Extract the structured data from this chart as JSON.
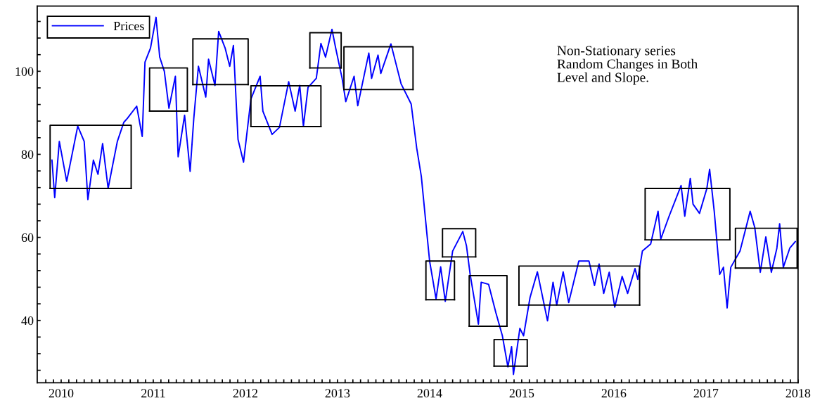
{
  "chart_data": {
    "type": "line",
    "annotations": [
      "Non-Stationary series\nRandom Changes in Both\nLevel and Slope."
    ],
    "xlim": [
      2009.74,
      2018.0
    ],
    "ylim": [
      25,
      115.7
    ],
    "xticks": [
      {
        "value": 2009.833,
        "label": null
      },
      {
        "value": 2009.917,
        "label": null
      },
      2010,
      {
        "value": 2010.083,
        "label": null
      },
      {
        "value": 2010.167,
        "label": null
      },
      {
        "value": 2010.25,
        "label": null
      },
      {
        "value": 2010.333,
        "label": null
      },
      {
        "value": 2010.417,
        "label": null
      },
      {
        "value": 2010.5,
        "label": null
      },
      {
        "value": 2010.583,
        "label": null
      },
      {
        "value": 2010.667,
        "label": null
      },
      {
        "value": 2010.75,
        "label": null
      },
      {
        "value": 2010.833,
        "label": null
      },
      {
        "value": 2010.917,
        "label": null
      },
      2011,
      {
        "value": 2011.083,
        "label": null
      },
      {
        "value": 2011.167,
        "label": null
      },
      {
        "value": 2011.25,
        "label": null
      },
      {
        "value": 2011.333,
        "label": null
      },
      {
        "value": 2011.417,
        "label": null
      },
      {
        "value": 2011.5,
        "label": null
      },
      {
        "value": 2011.583,
        "label": null
      },
      {
        "value": 2011.667,
        "label": null
      },
      {
        "value": 2011.75,
        "label": null
      },
      {
        "value": 2011.833,
        "label": null
      },
      {
        "value": 2011.917,
        "label": null
      },
      2012,
      {
        "value": 2012.083,
        "label": null
      },
      {
        "value": 2012.167,
        "label": null
      },
      {
        "value": 2012.25,
        "label": null
      },
      {
        "value": 2012.333,
        "label": null
      },
      {
        "value": 2012.417,
        "label": null
      },
      {
        "value": 2012.5,
        "label": null
      },
      {
        "value": 2012.583,
        "label": null
      },
      {
        "value": 2012.667,
        "label": null
      },
      {
        "value": 2012.75,
        "label": null
      },
      {
        "value": 2012.833,
        "label": null
      },
      {
        "value": 2012.917,
        "label": null
      },
      2013,
      {
        "value": 2013.083,
        "label": null
      },
      {
        "value": 2013.167,
        "label": null
      },
      {
        "value": 2013.25,
        "label": null
      },
      {
        "value": 2013.333,
        "label": null
      },
      {
        "value": 2013.417,
        "label": null
      },
      {
        "value": 2013.5,
        "label": null
      },
      {
        "value": 2013.583,
        "label": null
      },
      {
        "value": 2013.667,
        "label": null
      },
      {
        "value": 2013.75,
        "label": null
      },
      {
        "value": 2013.833,
        "label": null
      },
      {
        "value": 2013.917,
        "label": null
      },
      2014,
      {
        "value": 2014.083,
        "label": null
      },
      {
        "value": 2014.167,
        "label": null
      },
      {
        "value": 2014.25,
        "label": null
      },
      {
        "value": 2014.333,
        "label": null
      },
      {
        "value": 2014.417,
        "label": null
      },
      {
        "value": 2014.5,
        "label": null
      },
      {
        "value": 2014.583,
        "label": null
      },
      {
        "value": 2014.667,
        "label": null
      },
      {
        "value": 2014.75,
        "label": null
      },
      {
        "value": 2014.833,
        "label": null
      },
      {
        "value": 2014.917,
        "label": null
      },
      2015,
      {
        "value": 2015.083,
        "label": null
      },
      {
        "value": 2015.167,
        "label": null
      },
      {
        "value": 2015.25,
        "label": null
      },
      {
        "value": 2015.333,
        "label": null
      },
      {
        "value": 2015.417,
        "label": null
      },
      {
        "value": 2015.5,
        "label": null
      },
      {
        "value": 2015.583,
        "label": null
      },
      {
        "value": 2015.667,
        "label": null
      },
      {
        "value": 2015.75,
        "label": null
      },
      {
        "value": 2015.833,
        "label": null
      },
      {
        "value": 2015.917,
        "label": null
      },
      2016,
      {
        "value": 2016.083,
        "label": null
      },
      {
        "value": 2016.167,
        "label": null
      },
      {
        "value": 2016.25,
        "label": null
      },
      {
        "value": 2016.333,
        "label": null
      },
      {
        "value": 2016.417,
        "label": null
      },
      {
        "value": 2016.5,
        "label": null
      },
      {
        "value": 2016.583,
        "label": null
      },
      {
        "value": 2016.667,
        "label": null
      },
      {
        "value": 2016.75,
        "label": null
      },
      {
        "value": 2016.833,
        "label": null
      },
      {
        "value": 2016.917,
        "label": null
      },
      2017,
      {
        "value": 2017.083,
        "label": null
      },
      {
        "value": 2017.167,
        "label": null
      },
      {
        "value": 2017.25,
        "label": null
      },
      {
        "value": 2017.333,
        "label": null
      },
      {
        "value": 2017.417,
        "label": null
      },
      {
        "value": 2017.5,
        "label": null
      },
      {
        "value": 2017.583,
        "label": null
      },
      {
        "value": 2017.667,
        "label": null
      },
      {
        "value": 2017.75,
        "label": null
      },
      {
        "value": 2017.833,
        "label": null
      },
      {
        "value": 2017.917,
        "label": null
      },
      2018
    ],
    "yticks": [
      {
        "value": 28,
        "label": null
      },
      {
        "value": 32,
        "label": null
      },
      {
        "value": 36,
        "label": null
      },
      40,
      {
        "value": 44,
        "label": null
      },
      {
        "value": 48,
        "label": null
      },
      {
        "value": 52,
        "label": null
      },
      {
        "value": 56,
        "label": null
      },
      60,
      {
        "value": 64,
        "label": null
      },
      {
        "value": 68,
        "label": null
      },
      {
        "value": 72,
        "label": null
      },
      {
        "value": 76,
        "label": null
      },
      80,
      {
        "value": 84,
        "label": null
      },
      {
        "value": 88,
        "label": null
      },
      {
        "value": 92,
        "label": null
      },
      {
        "value": 96,
        "label": null
      },
      100,
      {
        "value": 104,
        "label": null
      },
      {
        "value": 108,
        "label": null
      },
      {
        "value": 112,
        "label": null
      }
    ],
    "grid": false,
    "legend": "top left",
    "marker": "none",
    "line_style": "solid",
    "series": [
      {
        "name": "Prices",
        "color": "#0000ff",
        "x": [
          2009.9,
          2009.93,
          2009.98,
          2010.06,
          2010.18,
          2010.25,
          2010.29,
          2010.35,
          2010.4,
          2010.45,
          2010.51,
          2010.56,
          2010.61,
          2010.68,
          2010.72,
          2010.82,
          2010.88,
          2010.91,
          2010.97,
          2011.03,
          2011.07,
          2011.12,
          2011.17,
          2011.24,
          2011.27,
          2011.34,
          2011.4,
          2011.44,
          2011.49,
          2011.57,
          2011.6,
          2011.67,
          2011.71,
          2011.78,
          2011.83,
          2011.87,
          2011.92,
          2011.98,
          2012.06,
          2012.16,
          2012.19,
          2012.29,
          2012.37,
          2012.47,
          2012.54,
          2012.59,
          2012.63,
          2012.68,
          2012.77,
          2012.82,
          2012.87,
          2012.94,
          2012.98,
          2013.05,
          2013.09,
          2013.18,
          2013.22,
          2013.34,
          2013.37,
          2013.44,
          2013.47,
          2013.58,
          2013.69,
          2013.8,
          2013.86,
          2013.91,
          2013.97,
          2014.0,
          2014.07,
          2014.12,
          2014.17,
          2014.25,
          2014.36,
          2014.4,
          2014.44,
          2014.53,
          2014.56,
          2014.64,
          2014.72,
          2014.79,
          2014.85,
          2014.89,
          2014.91,
          2014.98,
          2015.02,
          2015.09,
          2015.17,
          2015.28,
          2015.34,
          2015.38,
          2015.45,
          2015.51,
          2015.62,
          2015.73,
          2015.79,
          2015.84,
          2015.89,
          2015.95,
          2016.01,
          2016.09,
          2016.15,
          2016.23,
          2016.26,
          2016.31,
          2016.4,
          2016.48,
          2016.51,
          2016.6,
          2016.73,
          2016.77,
          2016.83,
          2016.86,
          2016.93,
          2017.01,
          2017.04,
          2017.09,
          2017.15,
          2017.19,
          2017.23,
          2017.27,
          2017.37,
          2017.48,
          2017.53,
          2017.59,
          2017.65,
          2017.71,
          2017.77,
          2017.8,
          2017.84,
          2017.91,
          2017.97
        ],
        "values": [
          78.6,
          69.6,
          83.1,
          73.5,
          86.8,
          83.1,
          69.1,
          78.6,
          75.2,
          82.6,
          71.8,
          77.5,
          83.1,
          87.7,
          88.7,
          91.6,
          84.3,
          102.2,
          105.6,
          113.0,
          103.4,
          100.0,
          91.1,
          98.8,
          79.4,
          89.4,
          75.9,
          88.7,
          101.2,
          93.8,
          102.9,
          96.6,
          109.6,
          105.6,
          101.2,
          106.2,
          83.6,
          78.1,
          93.3,
          98.8,
          90.4,
          84.8,
          86.5,
          97.5,
          90.4,
          96.6,
          86.8,
          96.1,
          98.3,
          106.7,
          103.4,
          110.1,
          105.6,
          98.3,
          92.7,
          98.8,
          91.7,
          104.4,
          98.3,
          103.9,
          99.5,
          106.6,
          97.0,
          92.1,
          81.5,
          74.7,
          61.0,
          54.3,
          45.2,
          52.9,
          44.6,
          56.7,
          61.4,
          58.0,
          51.1,
          39.1,
          49.2,
          48.7,
          41.8,
          36.3,
          28.8,
          33.7,
          27.0,
          38.1,
          36.3,
          45.5,
          51.7,
          39.9,
          49.2,
          43.7,
          51.7,
          44.3,
          54.3,
          54.3,
          48.4,
          53.6,
          46.5,
          51.6,
          43.2,
          50.6,
          46.5,
          52.5,
          49.9,
          56.7,
          58.4,
          66.3,
          59.6,
          65.1,
          72.5,
          65.1,
          74.2,
          68.0,
          65.8,
          71.8,
          76.4,
          66.3,
          51.1,
          52.8,
          43.0,
          52.8,
          56.7,
          66.3,
          62.4,
          51.6,
          60.1,
          51.6,
          57.4,
          63.3,
          52.8,
          57.4,
          59.0
        ]
      },
      {
        "type": "line",
        "color": "#000000",
        "x": [
          2009.88,
          2009.88,
          2010.76,
          2010.76
        ],
        "values": [
          71.8,
          87.0,
          87.0,
          71.8
        ]
      },
      {
        "type": "line",
        "color": "#000000",
        "x": [
          2009.88,
          2010.76
        ],
        "values": [
          71.8,
          71.8
        ]
      },
      {
        "type": "line",
        "color": "#000000",
        "x": [
          2010.96,
          2010.96,
          2011.37,
          2011.37
        ],
        "values": [
          90.4,
          100.8,
          100.8,
          90.4
        ]
      },
      {
        "type": "line",
        "color": "#000000",
        "x": [
          2010.96,
          2011.37
        ],
        "values": [
          90.4,
          90.4
        ]
      },
      {
        "type": "line",
        "color": "#000000",
        "x": [
          2011.43,
          2011.43,
          2012.03,
          2012.03
        ],
        "values": [
          96.8,
          107.8,
          107.8,
          96.8
        ]
      },
      {
        "type": "line",
        "color": "#000000",
        "x": [
          2011.43,
          2012.03
        ],
        "values": [
          96.8,
          96.8
        ]
      },
      {
        "type": "line",
        "color": "#000000",
        "x": [
          2012.06,
          2012.06,
          2012.82,
          2012.82
        ],
        "values": [
          86.7,
          96.5,
          96.5,
          86.7
        ]
      },
      {
        "type": "line",
        "color": "#000000",
        "x": [
          2012.06,
          2012.82
        ],
        "values": [
          86.7,
          86.7
        ]
      },
      {
        "type": "line",
        "color": "#000000",
        "x": [
          2012.7,
          2012.7,
          2013.04,
          2013.04
        ],
        "values": [
          100.8,
          109.3,
          109.3,
          100.8
        ]
      },
      {
        "type": "line",
        "color": "#000000",
        "x": [
          2012.7,
          2013.04
        ],
        "values": [
          100.8,
          100.8
        ]
      },
      {
        "type": "line",
        "color": "#000000",
        "x": [
          2013.07,
          2013.07,
          2013.82,
          2013.82
        ],
        "values": [
          95.6,
          105.9,
          105.9,
          95.6
        ]
      },
      {
        "type": "line",
        "color": "#000000",
        "x": [
          2013.07,
          2013.82
        ],
        "values": [
          95.6,
          95.6
        ]
      },
      {
        "type": "line",
        "color": "#000000",
        "x": [
          2013.96,
          2013.96,
          2014.27,
          2014.27
        ],
        "values": [
          45.0,
          54.3,
          54.3,
          45.0
        ]
      },
      {
        "type": "line",
        "color": "#000000",
        "x": [
          2013.96,
          2014.27
        ],
        "values": [
          45.0,
          45.0
        ]
      },
      {
        "type": "line",
        "color": "#000000",
        "x": [
          2014.14,
          2014.14,
          2014.5,
          2014.5
        ],
        "values": [
          55.3,
          62.1,
          62.1,
          55.3
        ]
      },
      {
        "type": "line",
        "color": "#000000",
        "x": [
          2014.14,
          2014.5
        ],
        "values": [
          55.3,
          55.3
        ]
      },
      {
        "type": "line",
        "color": "#000000",
        "x": [
          2014.43,
          2014.43,
          2014.84,
          2014.84
        ],
        "values": [
          38.6,
          50.8,
          50.8,
          38.6
        ]
      },
      {
        "type": "line",
        "color": "#000000",
        "x": [
          2014.43,
          2014.84
        ],
        "values": [
          38.6,
          38.6
        ]
      },
      {
        "type": "line",
        "color": "#000000",
        "x": [
          2014.7,
          2014.7,
          2015.06,
          2015.06
        ],
        "values": [
          29.0,
          35.4,
          35.4,
          29.0
        ]
      },
      {
        "type": "line",
        "color": "#000000",
        "x": [
          2014.7,
          2015.06
        ],
        "values": [
          29.0,
          29.0
        ]
      },
      {
        "type": "line",
        "color": "#000000",
        "x": [
          2014.97,
          2014.97,
          2016.28,
          2016.28
        ],
        "values": [
          43.7,
          53.1,
          53.1,
          43.7
        ]
      },
      {
        "type": "line",
        "color": "#000000",
        "x": [
          2014.97,
          2016.28
        ],
        "values": [
          43.7,
          43.7
        ]
      },
      {
        "type": "line",
        "color": "#000000",
        "x": [
          2016.34,
          2016.34,
          2017.26,
          2017.26
        ],
        "values": [
          59.4,
          71.8,
          71.8,
          59.4
        ]
      },
      {
        "type": "line",
        "color": "#000000",
        "x": [
          2016.34,
          2017.26
        ],
        "values": [
          59.4,
          59.4
        ]
      },
      {
        "type": "line",
        "color": "#000000",
        "x": [
          2017.32,
          2017.32,
          2017.99,
          2017.99
        ],
        "values": [
          52.6,
          62.2,
          62.2,
          52.6
        ]
      },
      {
        "type": "line",
        "color": "#000000",
        "x": [
          2017.32,
          2017.99
        ],
        "values": [
          52.6,
          52.6
        ]
      }
    ]
  }
}
